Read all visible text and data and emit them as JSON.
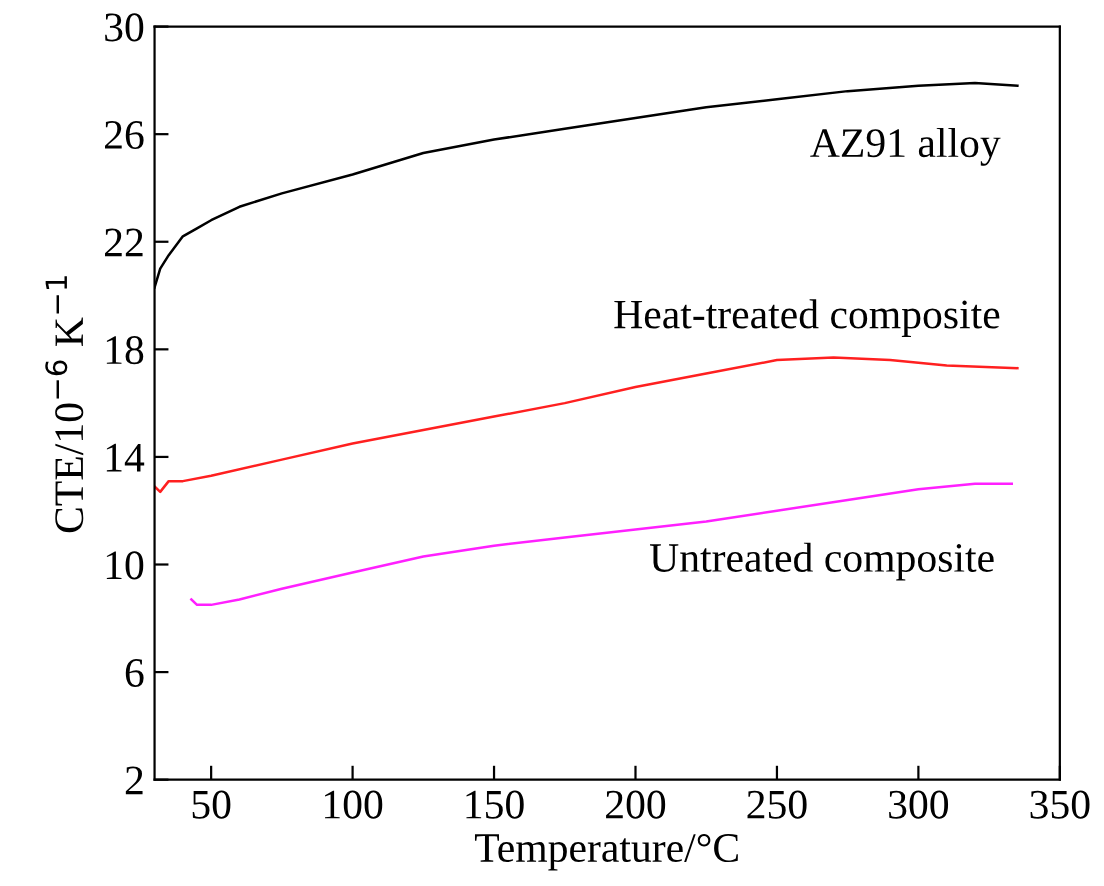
{
  "chart_data": {
    "type": "line",
    "xlabel": "Temperature/°C",
    "ylabel": "CTE/10$^{−6}$ K$^{−1}$",
    "xlim": [
      30,
      350
    ],
    "ylim": [
      2,
      30
    ],
    "xticks": [
      50,
      100,
      150,
      200,
      250,
      300,
      350
    ],
    "yticks": [
      2,
      6,
      10,
      14,
      18,
      22,
      26,
      30
    ],
    "grid": false,
    "legend": false,
    "marker": "none",
    "line_style": "solid",
    "series": [
      {
        "name": "AZ91 alloy",
        "color": "#000000",
        "x": [
          30,
          32,
          35,
          40,
          45,
          50,
          60,
          75,
          100,
          125,
          150,
          175,
          200,
          225,
          250,
          275,
          300,
          320,
          335
        ],
        "values": [
          20.3,
          21.0,
          21.5,
          22.2,
          22.5,
          22.8,
          23.3,
          23.8,
          24.5,
          25.3,
          25.8,
          26.2,
          26.6,
          27.0,
          27.3,
          27.6,
          27.8,
          27.9,
          27.8
        ]
      },
      {
        "name": "Heat-treated composite",
        "color": "#ff2020",
        "x": [
          30,
          32,
          35,
          40,
          50,
          75,
          100,
          125,
          150,
          175,
          200,
          225,
          250,
          270,
          290,
          310,
          335
        ],
        "values": [
          12.9,
          12.7,
          13.1,
          13.1,
          13.3,
          13.9,
          14.5,
          15.0,
          15.5,
          16.0,
          16.6,
          17.1,
          17.6,
          17.7,
          17.6,
          17.4,
          17.3
        ]
      },
      {
        "name": "Untreated composite",
        "color": "#ff20ff",
        "x": [
          43,
          45,
          50,
          60,
          75,
          100,
          125,
          150,
          175,
          200,
          225,
          250,
          275,
          300,
          320,
          333
        ],
        "values": [
          8.7,
          8.5,
          8.5,
          8.7,
          9.1,
          9.7,
          10.3,
          10.7,
          11.0,
          11.3,
          11.6,
          12.0,
          12.4,
          12.8,
          13.0,
          13.0
        ]
      }
    ]
  }
}
